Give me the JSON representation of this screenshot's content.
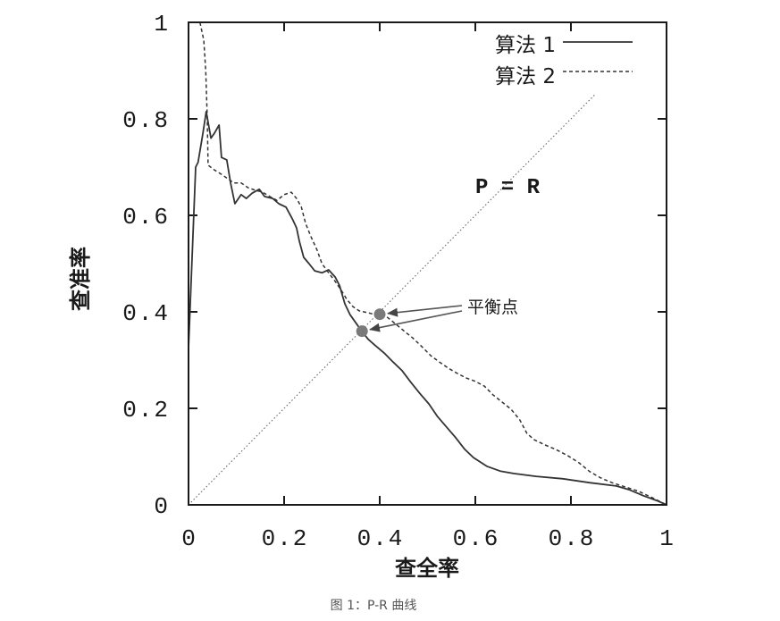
{
  "chart_data": {
    "type": "line",
    "xlabel": "查全率",
    "ylabel": "查准率",
    "xlim": [
      0,
      1
    ],
    "ylim": [
      0,
      1
    ],
    "x_ticks": [
      {
        "value": 0,
        "label": "0"
      },
      {
        "value": 0.2,
        "label": "0.2"
      },
      {
        "value": 0.4,
        "label": "0.4"
      },
      {
        "value": 0.6,
        "label": "0.6"
      },
      {
        "value": 0.8,
        "label": "0.8"
      },
      {
        "value": 1,
        "label": "1"
      }
    ],
    "y_ticks": [
      {
        "value": 0,
        "label": "0"
      },
      {
        "value": 0.2,
        "label": "0.2"
      },
      {
        "value": 0.4,
        "label": "0.4"
      },
      {
        "value": 0.6,
        "label": "0.6"
      },
      {
        "value": 0.8,
        "label": "0.8"
      },
      {
        "value": 1,
        "label": "1"
      }
    ],
    "grid": false,
    "legend": "top-right",
    "series": [
      {
        "name": "算法 1",
        "dashed": false,
        "color": "#333333",
        "points": [
          [
            0,
            0.325
          ],
          [
            0.015,
            0.7
          ],
          [
            0.02,
            0.71
          ],
          [
            0.03,
            0.77
          ],
          [
            0.037,
            0.815
          ],
          [
            0.047,
            0.76
          ],
          [
            0.054,
            0.77
          ],
          [
            0.064,
            0.787
          ],
          [
            0.069,
            0.72
          ],
          [
            0.08,
            0.715
          ],
          [
            0.088,
            0.667
          ],
          [
            0.097,
            0.624
          ],
          [
            0.11,
            0.643
          ],
          [
            0.121,
            0.635
          ],
          [
            0.133,
            0.646
          ],
          [
            0.148,
            0.654
          ],
          [
            0.159,
            0.639
          ],
          [
            0.176,
            0.635
          ],
          [
            0.189,
            0.624
          ],
          [
            0.204,
            0.617
          ],
          [
            0.217,
            0.593
          ],
          [
            0.226,
            0.574
          ],
          [
            0.232,
            0.546
          ],
          [
            0.241,
            0.513
          ],
          [
            0.252,
            0.5
          ],
          [
            0.264,
            0.485
          ],
          [
            0.279,
            0.481
          ],
          [
            0.293,
            0.487
          ],
          [
            0.307,
            0.472
          ],
          [
            0.316,
            0.454
          ],
          [
            0.327,
            0.417
          ],
          [
            0.338,
            0.394
          ],
          [
            0.348,
            0.38
          ],
          [
            0.363,
            0.359
          ],
          [
            0.376,
            0.343
          ],
          [
            0.39,
            0.331
          ],
          [
            0.409,
            0.315
          ],
          [
            0.428,
            0.296
          ],
          [
            0.447,
            0.278
          ],
          [
            0.465,
            0.254
          ],
          [
            0.484,
            0.231
          ],
          [
            0.503,
            0.209
          ],
          [
            0.521,
            0.183
          ],
          [
            0.54,
            0.161
          ],
          [
            0.559,
            0.139
          ],
          [
            0.578,
            0.115
          ],
          [
            0.596,
            0.098
          ],
          [
            0.624,
            0.08
          ],
          [
            0.652,
            0.07
          ],
          [
            0.68,
            0.065
          ],
          [
            0.727,
            0.059
          ],
          [
            0.783,
            0.054
          ],
          [
            0.839,
            0.046
          ],
          [
            0.895,
            0.039
          ],
          [
            0.923,
            0.031
          ],
          [
            0.951,
            0.019
          ],
          [
            0.979,
            0.009
          ],
          [
            1,
            0
          ]
        ]
      },
      {
        "name": "算法 2",
        "dashed": true,
        "color": "#333333",
        "points": [
          [
            0.024,
            1
          ],
          [
            0.032,
            0.963
          ],
          [
            0.036,
            0.898
          ],
          [
            0.039,
            0.806
          ],
          [
            0.041,
            0.704
          ],
          [
            0.054,
            0.694
          ],
          [
            0.069,
            0.685
          ],
          [
            0.082,
            0.676
          ],
          [
            0.095,
            0.667
          ],
          [
            0.11,
            0.667
          ],
          [
            0.125,
            0.657
          ],
          [
            0.14,
            0.652
          ],
          [
            0.155,
            0.648
          ],
          [
            0.17,
            0.639
          ],
          [
            0.185,
            0.631
          ],
          [
            0.2,
            0.643
          ],
          [
            0.215,
            0.648
          ],
          [
            0.226,
            0.635
          ],
          [
            0.236,
            0.617
          ],
          [
            0.245,
            0.583
          ],
          [
            0.256,
            0.556
          ],
          [
            0.269,
            0.528
          ],
          [
            0.279,
            0.5
          ],
          [
            0.293,
            0.481
          ],
          [
            0.307,
            0.463
          ],
          [
            0.32,
            0.444
          ],
          [
            0.331,
            0.426
          ],
          [
            0.344,
            0.411
          ],
          [
            0.357,
            0.402
          ],
          [
            0.376,
            0.398
          ],
          [
            0.391,
            0.394
          ],
          [
            0.413,
            0.391
          ],
          [
            0.432,
            0.376
          ],
          [
            0.45,
            0.361
          ],
          [
            0.469,
            0.346
          ],
          [
            0.488,
            0.328
          ],
          [
            0.507,
            0.309
          ],
          [
            0.525,
            0.296
          ],
          [
            0.544,
            0.283
          ],
          [
            0.563,
            0.272
          ],
          [
            0.581,
            0.263
          ],
          [
            0.6,
            0.256
          ],
          [
            0.619,
            0.246
          ],
          [
            0.637,
            0.228
          ],
          [
            0.656,
            0.213
          ],
          [
            0.675,
            0.198
          ],
          [
            0.693,
            0.176
          ],
          [
            0.708,
            0.148
          ],
          [
            0.723,
            0.135
          ],
          [
            0.746,
            0.124
          ],
          [
            0.768,
            0.115
          ],
          [
            0.793,
            0.102
          ],
          [
            0.817,
            0.087
          ],
          [
            0.839,
            0.069
          ],
          [
            0.862,
            0.056
          ],
          [
            0.886,
            0.046
          ],
          [
            0.914,
            0.037
          ],
          [
            0.942,
            0.028
          ],
          [
            0.97,
            0.015
          ],
          [
            1,
            0
          ]
        ]
      }
    ],
    "reference_line": {
      "label": "P = R",
      "from": [
        0,
        0
      ],
      "to": [
        0.85,
        0.85
      ],
      "color": "#666666"
    },
    "balance_points": {
      "label": "平衡点",
      "color": "#7a7a7a",
      "points": [
        [
          0.4,
          0.395
        ],
        [
          0.363,
          0.36
        ]
      ]
    }
  },
  "caption": "图 1：P-R 曲线"
}
